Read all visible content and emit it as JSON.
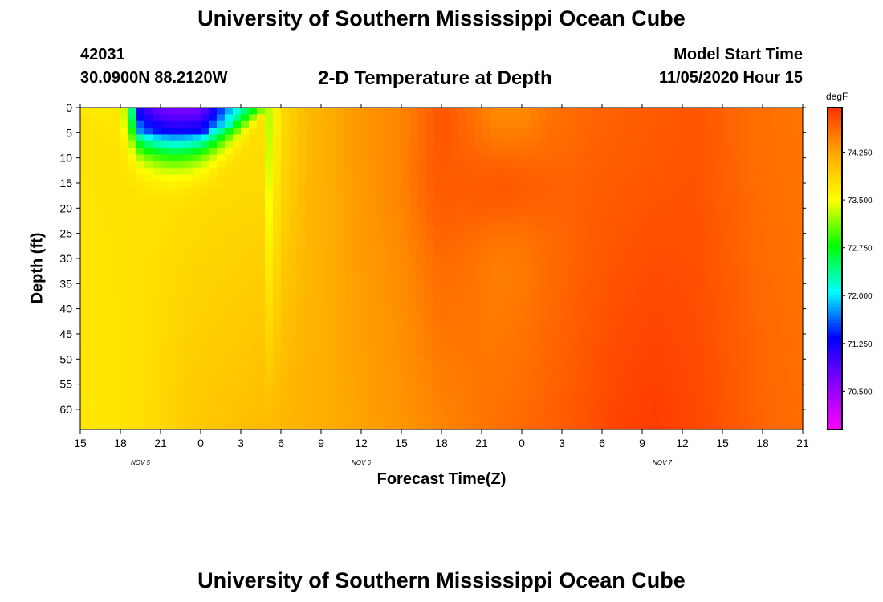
{
  "header": {
    "title": "University of Southern Mississippi Ocean Cube",
    "station_id": "42031",
    "coordinates": "30.0900N 88.2120W",
    "plot_title": "2-D Temperature at Depth",
    "model_label": "Model Start Time",
    "model_time": "11/05/2020 Hour 15"
  },
  "footer": {
    "title": "University of Southern Mississippi Ocean Cube"
  },
  "chart_data": {
    "type": "heatmap",
    "title": "2-D Temperature at Depth",
    "xlabel": "Forecast Time(Z)",
    "ylabel": "Depth (ft)",
    "x_units": "forecast hours since 11/05/2020 15Z",
    "xlim": [
      0,
      54
    ],
    "x_ticks": [
      {
        "hour": 0,
        "label": "15"
      },
      {
        "hour": 3,
        "label": "18"
      },
      {
        "hour": 6,
        "label": "21"
      },
      {
        "hour": 9,
        "label": "0"
      },
      {
        "hour": 12,
        "label": "3"
      },
      {
        "hour": 15,
        "label": "6"
      },
      {
        "hour": 18,
        "label": "9"
      },
      {
        "hour": 21,
        "label": "12"
      },
      {
        "hour": 24,
        "label": "15"
      },
      {
        "hour": 27,
        "label": "18"
      },
      {
        "hour": 30,
        "label": "21"
      },
      {
        "hour": 33,
        "label": "0"
      },
      {
        "hour": 36,
        "label": "3"
      },
      {
        "hour": 39,
        "label": "6"
      },
      {
        "hour": 42,
        "label": "9"
      },
      {
        "hour": 45,
        "label": "12"
      },
      {
        "hour": 48,
        "label": "15"
      },
      {
        "hour": 51,
        "label": "18"
      },
      {
        "hour": 54,
        "label": "21"
      }
    ],
    "date_labels": [
      {
        "hour": 4.5,
        "label": "NOV 5"
      },
      {
        "hour": 21,
        "label": "NOV 6"
      },
      {
        "hour": 43.5,
        "label": "NOV 7"
      }
    ],
    "ylim": [
      0,
      64
    ],
    "y_ticks": [
      0,
      5,
      10,
      15,
      20,
      25,
      30,
      35,
      40,
      45,
      50,
      55,
      60
    ],
    "colorbar": {
      "unit": "degF",
      "range": [
        69.9,
        74.95
      ],
      "ticks": [
        "70.500",
        "71.250",
        "72.000",
        "72.750",
        "73.500",
        "74.250"
      ],
      "tick_values": [
        70.5,
        71.25,
        72.0,
        72.75,
        73.5,
        74.25
      ],
      "colors": [
        "#ff00ff",
        "#8800ff",
        "#0000ff",
        "#00ffff",
        "#00ff00",
        "#ffff00",
        "#ffaa00",
        "#ff3300"
      ]
    },
    "surface_profile": [
      {
        "hour": 0,
        "temp": 73.65
      },
      {
        "hour": 3,
        "temp": 73.7
      },
      {
        "hour": 3.6,
        "temp": 73.0
      },
      {
        "hour": 4.5,
        "temp": 71.2
      },
      {
        "hour": 5.5,
        "temp": 70.85
      },
      {
        "hour": 7,
        "temp": 70.7
      },
      {
        "hour": 9,
        "temp": 70.75
      },
      {
        "hour": 10.5,
        "temp": 71.5
      },
      {
        "hour": 12,
        "temp": 72.3
      },
      {
        "hour": 13.5,
        "temp": 73.0
      },
      {
        "hour": 15,
        "temp": 73.8
      },
      {
        "hour": 17,
        "temp": 74.1
      },
      {
        "hour": 20,
        "temp": 74.3
      },
      {
        "hour": 24,
        "temp": 74.45
      },
      {
        "hour": 27,
        "temp": 74.75
      },
      {
        "hour": 29,
        "temp": 74.6
      },
      {
        "hour": 31,
        "temp": 74.4
      },
      {
        "hour": 33,
        "temp": 74.4
      },
      {
        "hour": 35,
        "temp": 74.55
      },
      {
        "hour": 38,
        "temp": 74.65
      },
      {
        "hour": 42,
        "temp": 74.7
      },
      {
        "hour": 46,
        "temp": 74.75
      },
      {
        "hour": 50,
        "temp": 74.6
      },
      {
        "hour": 54,
        "temp": 74.55
      }
    ],
    "bottom_profile": [
      {
        "hour": 0,
        "temp": 73.7
      },
      {
        "hour": 4,
        "temp": 73.75
      },
      {
        "hour": 8,
        "temp": 73.95
      },
      {
        "hour": 12,
        "temp": 74.05
      },
      {
        "hour": 18,
        "temp": 74.2
      },
      {
        "hour": 24,
        "temp": 74.35
      },
      {
        "hour": 30,
        "temp": 74.55
      },
      {
        "hour": 36,
        "temp": 74.7
      },
      {
        "hour": 40,
        "temp": 74.85
      },
      {
        "hour": 43,
        "temp": 74.9
      },
      {
        "hour": 47,
        "temp": 74.8
      },
      {
        "hour": 51,
        "temp": 74.65
      },
      {
        "hour": 54,
        "temp": 74.6
      }
    ],
    "features": [
      {
        "name": "cold surface anomaly",
        "hour_center": 7,
        "hour_halfwidth": 5,
        "depth_extent": 9,
        "min_temp": 70.5
      },
      {
        "name": "warm core",
        "hour_center": 31.5,
        "hour_halfwidth": 5,
        "depth_center": 16,
        "depth_halfwidth": 10,
        "max_temp": 74.75
      }
    ]
  }
}
